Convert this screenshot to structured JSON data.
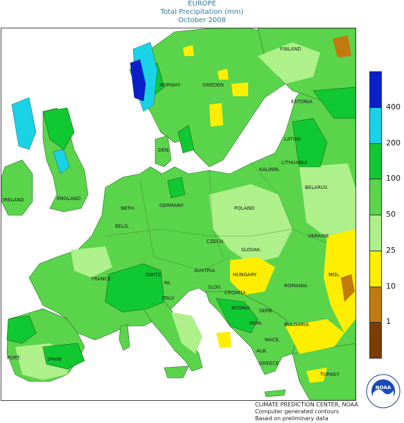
{
  "title": {
    "region": "EUROPE",
    "variable": "Total Precipitation (mm)",
    "period": "October 2008"
  },
  "legend": {
    "ticks": [
      "400",
      "200",
      "100",
      "50",
      "25",
      "10",
      "1"
    ],
    "colors": [
      "#0a1fc8",
      "#1ad2e6",
      "#10c832",
      "#5ad44a",
      "#aef08a",
      "#ffee00",
      "#c07a10",
      "#7a3d05"
    ]
  },
  "labels": {
    "finland": "FINLAND",
    "norway": "NORWAY",
    "sweden": "SWEDEN",
    "estonia": "ESTONIA",
    "latvia": "LATVIA",
    "lithuania": "LITHUANIA",
    "kaliningrad": "KALININ.",
    "denmark": "DEN.",
    "belarus": "BELARUS",
    "ireland": "IRELAND",
    "england": "ENGLAND",
    "netherlands": "NETH.",
    "germany": "GERMANY",
    "poland": "POLAND",
    "belgium": "BELG.",
    "czech": "CZECH.",
    "slovakia": "SLOVAK.",
    "ukraine": "UKRAINE",
    "france": "FRANCE",
    "switzerland": "SWITZ.",
    "austria": "AUSTRIA",
    "hungary": "HUNGARY",
    "moldova": "MOL.",
    "slovenia": "SLOV.",
    "croatia": "CROATIA",
    "romania": "ROMANIA",
    "italy": "ITALY",
    "bosnia": "BOSNIA",
    "serbia": "SERB.",
    "bulgaria": "BULGARIA",
    "montenegro": "MON.",
    "macedonia": "MACE.",
    "portugal": "PORT.",
    "spain": "SPAIN",
    "albania": "ALB.",
    "greece": "GREECE",
    "turkey": "TURKEY",
    "pa": "PA"
  },
  "credits": {
    "line1": "CLIMATE PREDICTION CENTER, NOAA",
    "line2": "Computer generated contours",
    "line3": "Based on preliminary data"
  },
  "logo": {
    "text": "NOAA",
    "ring_top": "NATIONAL OCEANIC AND ATMOSPHERIC ADMINISTRATION",
    "ring_bottom": "U.S. DEPARTMENT OF COMMERCE"
  }
}
